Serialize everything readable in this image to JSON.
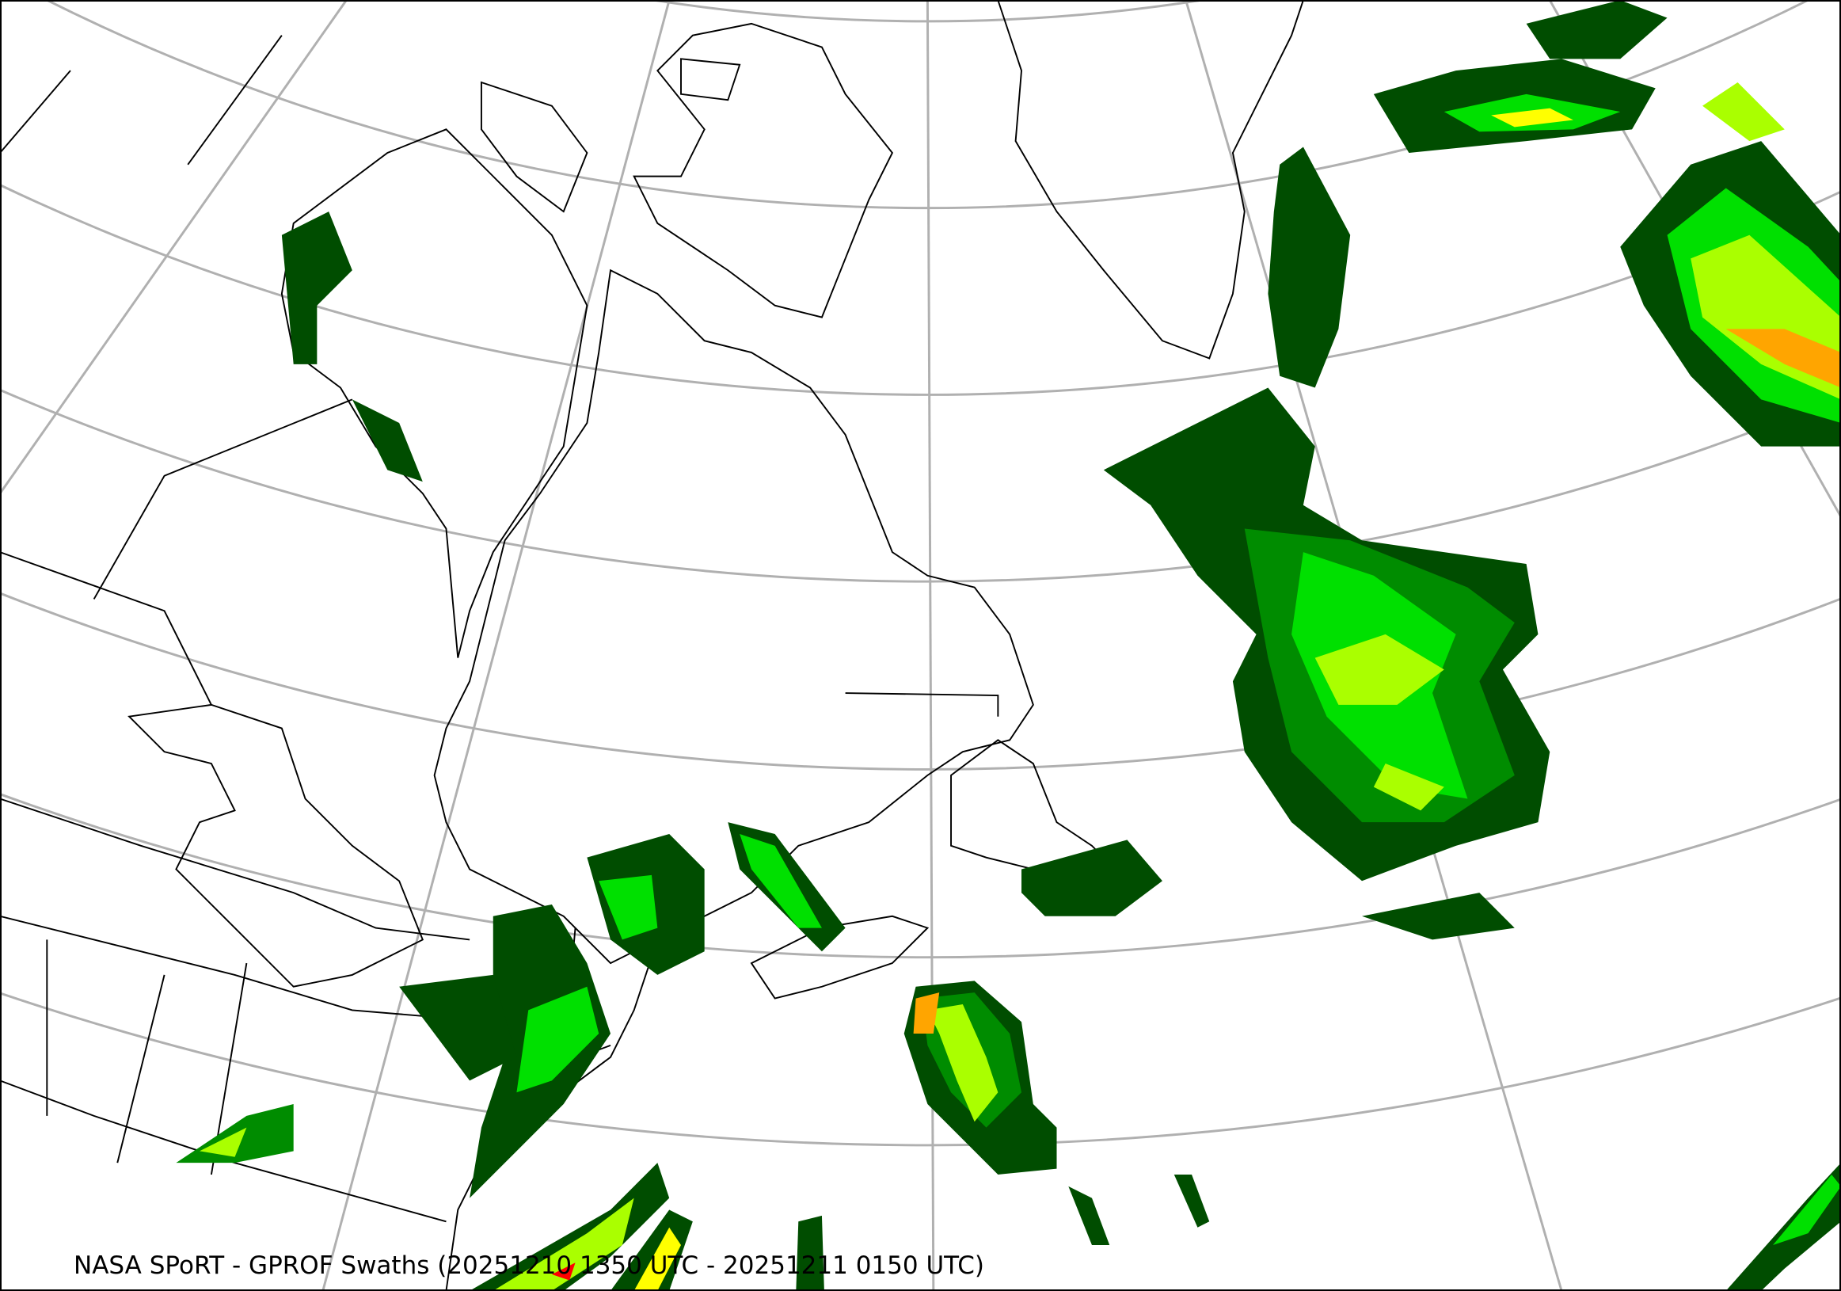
{
  "caption": "NASA SPoRT - GPROF Swaths (20251210 1350 UTC - 20251211 0150 UTC)",
  "colors": {
    "graticule": "#b0b0b0",
    "coastline": "#000000",
    "precip_levels": [
      "#004d00",
      "#008c00",
      "#00e000",
      "#aaff00",
      "#ffff00",
      "#ffa500",
      "#ff0000"
    ]
  }
}
